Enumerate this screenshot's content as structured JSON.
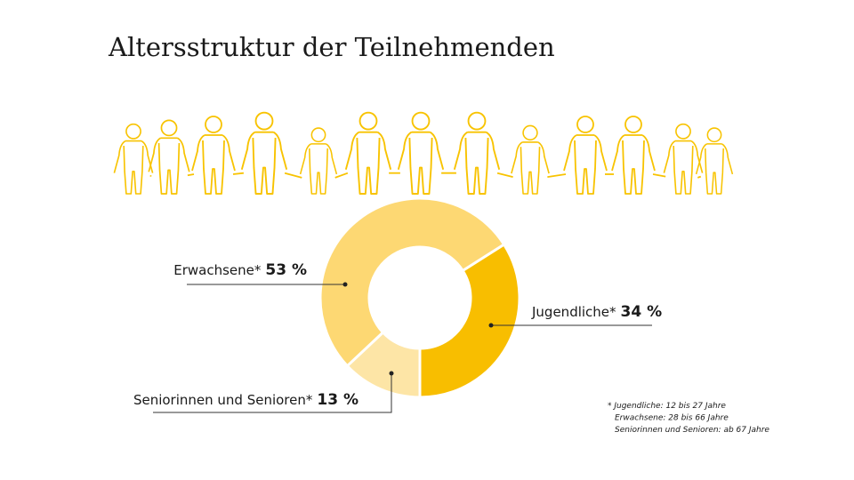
{
  "chart_data": {
    "type": "donut",
    "title": "Altersstruktur der Teilnehmenden",
    "categories": [
      "Jugendliche*",
      "Seniorinnen und Senioren*",
      "Erwachsene*"
    ],
    "values": [
      34,
      13,
      53
    ],
    "value_labels": [
      "34 %",
      "13 %",
      "53 %"
    ],
    "colors": [
      "#f8be00",
      "#fde5a6",
      "#fdd873"
    ],
    "footnote": [
      "* Jugendliche: 12 bis 27 Jahre",
      "Erwachsene: 28 bis 66 Jahre",
      "Seniorinnen und Senioren: ab 67 Jahre"
    ]
  }
}
